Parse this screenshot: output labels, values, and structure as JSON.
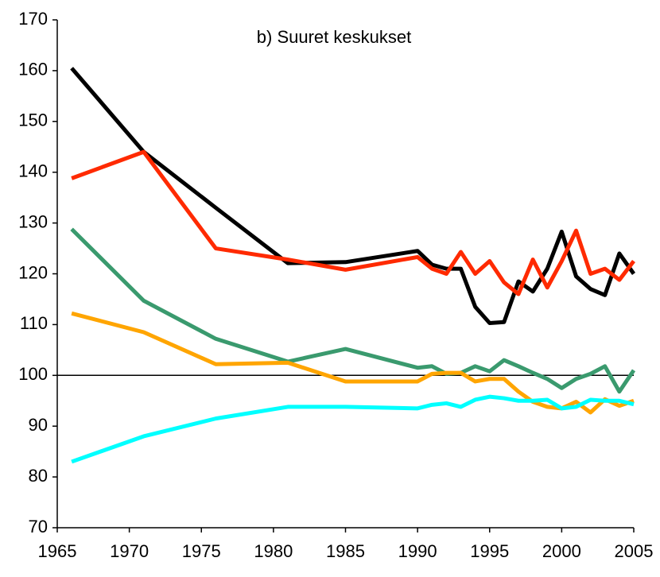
{
  "chart_data": {
    "type": "line",
    "title": "b) Suuret keskukset",
    "x": [
      1966,
      1971,
      1976,
      1981,
      1985,
      1990,
      1991,
      1992,
      1993,
      1994,
      1995,
      1996,
      1997,
      1998,
      1999,
      2000,
      2001,
      2002,
      2003,
      2004,
      2005
    ],
    "series": [
      {
        "color": "#000000",
        "values": [
          160.5,
          144,
          133,
          122.1,
          122.3,
          124.5,
          121.8,
          121,
          121,
          113.5,
          110.3,
          110.5,
          118.5,
          116.5,
          121,
          128.3,
          119.5,
          117,
          115.8,
          124,
          120
        ]
      },
      {
        "color": "#ff2a00",
        "values": [
          138.8,
          144,
          125,
          122.8,
          120.8,
          123.3,
          121,
          120,
          124.3,
          120,
          122.5,
          118.3,
          116,
          122.8,
          117.3,
          122.5,
          128.5,
          120,
          121,
          118.8,
          122.5
        ]
      },
      {
        "color": "#3a9a6e",
        "values": [
          128.8,
          114.7,
          107.2,
          102.7,
          105.2,
          101.5,
          101.8,
          100.3,
          100.5,
          101.8,
          100.8,
          103,
          101.8,
          100.5,
          99.3,
          97.5,
          99.3,
          100.3,
          101.8,
          96.8,
          101
        ]
      },
      {
        "color": "#ffa500",
        "values": [
          112.2,
          108.5,
          102.2,
          102.5,
          98.8,
          98.8,
          100.3,
          100.5,
          100.5,
          98.8,
          99.3,
          99.3,
          96.8,
          94.8,
          93.8,
          93.5,
          94.8,
          92.7,
          95.3,
          94,
          95
        ]
      },
      {
        "color": "#00ffff",
        "values": [
          83,
          88,
          91.5,
          93.8,
          93.8,
          93.5,
          94.2,
          94.5,
          93.8,
          95.2,
          95.8,
          95.5,
          95,
          95,
          95.2,
          93.5,
          93.8,
          95.2,
          95,
          95,
          94.3
        ]
      }
    ],
    "reference_line": 100,
    "xlim": [
      1965,
      2005
    ],
    "xticks": [
      1965,
      1970,
      1975,
      1980,
      1985,
      1990,
      1995,
      2000,
      2005
    ],
    "ylim": [
      70,
      170
    ],
    "yticks": [
      70,
      80,
      90,
      100,
      110,
      120,
      130,
      140,
      150,
      160,
      170
    ],
    "grid": false
  }
}
